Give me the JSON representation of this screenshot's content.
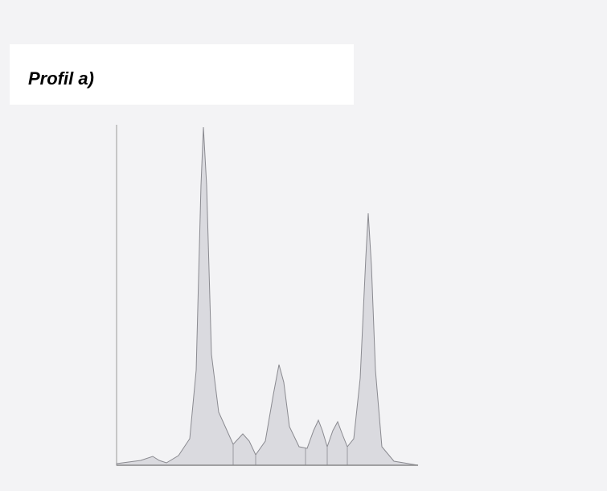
{
  "label": "Profil a)"
}
